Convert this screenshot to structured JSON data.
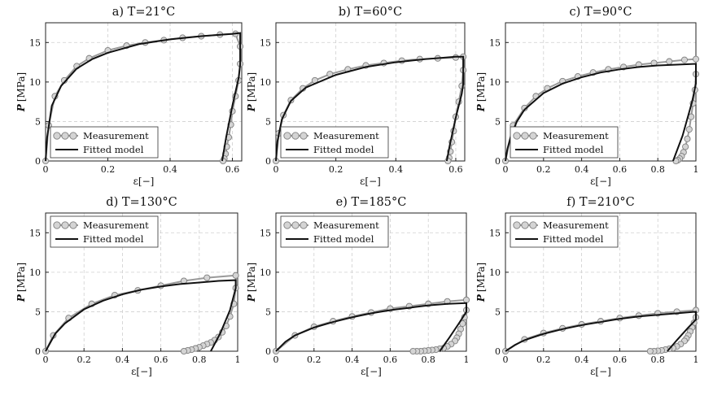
{
  "legend": {
    "measurement": "Measurement",
    "fitted": "Fitted model"
  },
  "colors": {
    "measurement_fill": "#d4d4d4",
    "measurement_edge": "#7f7f7f",
    "measurement_line": "#9a9a9a",
    "fitted_line": "#111111"
  },
  "chart_data": [
    {
      "type": "line",
      "title": "a) T=21°C",
      "xlabel": "ε[−]",
      "ylabel_symbol": "P",
      "ylabel_unit": "[MPa]",
      "xlim": [
        0,
        0.63
      ],
      "ylim": [
        0,
        17.5
      ],
      "xticks": [
        0,
        0.2,
        0.4,
        0.6
      ],
      "xtick_labels": [
        "0",
        "0.2",
        "0.4",
        "0.6"
      ],
      "yticks": [
        0,
        5,
        10,
        15
      ],
      "ytick_labels": [
        "0",
        "5",
        "10",
        "15"
      ],
      "grid": true,
      "legend_position": "bottom-left",
      "series": [
        {
          "name": "Measurement",
          "style": "markers",
          "x": [
            0,
            0.01,
            0.03,
            0.06,
            0.1,
            0.14,
            0.2,
            0.26,
            0.32,
            0.38,
            0.44,
            0.5,
            0.56,
            0.61,
            0.625,
            0.625,
            0.62,
            0.61,
            0.6,
            0.595,
            0.588,
            0.582,
            0.578,
            0.574,
            0.57
          ],
          "y": [
            0,
            4.5,
            8.2,
            10.2,
            12.0,
            13.0,
            14.0,
            14.6,
            15.0,
            15.3,
            15.6,
            15.8,
            16.0,
            16.1,
            14.5,
            12.3,
            10.2,
            8.2,
            6.3,
            4.6,
            3.0,
            1.8,
            0.9,
            0.3,
            0
          ]
        },
        {
          "name": "Fitted model",
          "style": "line",
          "x": [
            0,
            0.005,
            0.02,
            0.05,
            0.1,
            0.15,
            0.2,
            0.3,
            0.4,
            0.5,
            0.6,
            0.625,
            0.625,
            0.62,
            0.6,
            0.58,
            0.567
          ],
          "y": [
            0,
            3.0,
            7.0,
            9.5,
            11.7,
            12.9,
            13.7,
            14.8,
            15.4,
            15.8,
            16.1,
            16.2,
            12.2,
            10.5,
            7.0,
            3.0,
            0
          ]
        }
      ]
    },
    {
      "type": "line",
      "title": "b) T=60°C",
      "xlabel": "ε[−]",
      "ylabel_symbol": "P",
      "ylabel_unit": "[MPa]",
      "xlim": [
        0,
        0.63
      ],
      "ylim": [
        0,
        17.5
      ],
      "xticks": [
        0,
        0.2,
        0.4,
        0.6
      ],
      "xtick_labels": [
        "0",
        "0.2",
        "0.4",
        "0.6"
      ],
      "yticks": [
        0,
        5,
        10,
        15
      ],
      "ytick_labels": [
        "0",
        "5",
        "10",
        "15"
      ],
      "grid": true,
      "legend_position": "bottom-left",
      "series": [
        {
          "name": "Measurement",
          "style": "markers",
          "x": [
            0,
            0.01,
            0.025,
            0.05,
            0.09,
            0.13,
            0.18,
            0.24,
            0.3,
            0.36,
            0.42,
            0.48,
            0.54,
            0.6,
            0.625,
            0.625,
            0.62,
            0.61,
            0.6,
            0.593,
            0.587,
            0.582,
            0.578,
            0.574
          ],
          "y": [
            0,
            3.5,
            5.8,
            7.7,
            9.2,
            10.2,
            11.0,
            11.6,
            12.1,
            12.4,
            12.7,
            12.9,
            13.0,
            13.1,
            13.2,
            11.5,
            9.5,
            7.5,
            5.6,
            3.8,
            2.4,
            1.2,
            0.4,
            0
          ]
        },
        {
          "name": "Fitted model",
          "style": "line",
          "x": [
            0,
            0.005,
            0.02,
            0.05,
            0.1,
            0.2,
            0.3,
            0.4,
            0.5,
            0.6,
            0.625,
            0.625,
            0.62,
            0.6,
            0.58,
            0.57
          ],
          "y": [
            0,
            2.5,
            5.3,
            7.6,
            9.3,
            10.9,
            11.9,
            12.5,
            12.9,
            13.2,
            13.2,
            9.8,
            8.5,
            5.5,
            2.0,
            0
          ]
        }
      ]
    },
    {
      "type": "line",
      "title": "c) T=90°C",
      "xlabel": "ε[−]",
      "ylabel_symbol": "P",
      "ylabel_unit": "[MPa]",
      "xlim": [
        0,
        1.0
      ],
      "ylim": [
        0,
        17.5
      ],
      "xticks": [
        0,
        0.2,
        0.4,
        0.6,
        0.8,
        1
      ],
      "xtick_labels": [
        "0",
        "0.2",
        "0.4",
        "0.6",
        "0.8",
        "1"
      ],
      "yticks": [
        0,
        5,
        10,
        15
      ],
      "ytick_labels": [
        "0",
        "5",
        "10",
        "15"
      ],
      "grid": true,
      "legend_position": "bottom-left",
      "series": [
        {
          "name": "Measurement",
          "style": "markers",
          "x": [
            0,
            0.04,
            0.1,
            0.16,
            0.22,
            0.3,
            0.38,
            0.46,
            0.54,
            0.62,
            0.7,
            0.78,
            0.86,
            0.94,
            1.0,
            1.0,
            0.995,
            0.985,
            0.975,
            0.965,
            0.955,
            0.945,
            0.935,
            0.925,
            0.915,
            0.905,
            0.895
          ],
          "y": [
            0,
            4.5,
            6.7,
            8.2,
            9.2,
            10.1,
            10.7,
            11.2,
            11.6,
            11.9,
            12.2,
            12.4,
            12.6,
            12.8,
            12.9,
            11.0,
            9.0,
            7.3,
            5.6,
            4.0,
            2.8,
            1.8,
            1.1,
            0.6,
            0.3,
            0.1,
            0
          ]
        },
        {
          "name": "Fitted model",
          "style": "line",
          "x": [
            0,
            0.01,
            0.03,
            0.06,
            0.1,
            0.2,
            0.3,
            0.4,
            0.5,
            0.6,
            0.7,
            0.8,
            0.9,
            1.0,
            1.0,
            0.98,
            0.93,
            0.88
          ],
          "y": [
            0,
            1.5,
            3.3,
            5.0,
            6.5,
            8.6,
            9.8,
            10.6,
            11.2,
            11.6,
            11.9,
            12.1,
            12.2,
            12.3,
            9.8,
            7.5,
            3.2,
            0
          ]
        }
      ]
    },
    {
      "type": "line",
      "title": "d) T=130°C",
      "xlabel": "ε[−]",
      "ylabel_symbol": "P",
      "ylabel_unit": "[MPa]",
      "xlim": [
        0,
        1.0
      ],
      "ylim": [
        0,
        17.5
      ],
      "xticks": [
        0,
        0.2,
        0.4,
        0.6,
        0.8,
        1
      ],
      "xtick_labels": [
        "0",
        "0.2",
        "0.4",
        "0.6",
        "0.8",
        "1"
      ],
      "yticks": [
        0,
        5,
        10,
        15
      ],
      "ytick_labels": [
        "0",
        "5",
        "10",
        "15"
      ],
      "grid": true,
      "legend_position": "top-left",
      "series": [
        {
          "name": "Measurement",
          "style": "markers",
          "x": [
            0,
            0.04,
            0.12,
            0.24,
            0.36,
            0.48,
            0.6,
            0.72,
            0.84,
            0.99,
            0.99,
            0.98,
            0.96,
            0.94,
            0.92,
            0.9,
            0.88,
            0.86,
            0.84,
            0.82,
            0.8,
            0.78,
            0.76,
            0.74,
            0.72
          ],
          "y": [
            0,
            2.0,
            4.2,
            6.0,
            7.1,
            7.7,
            8.3,
            8.9,
            9.3,
            9.6,
            8.0,
            6.0,
            4.4,
            3.2,
            2.4,
            1.8,
            1.4,
            1.1,
            0.9,
            0.7,
            0.5,
            0.35,
            0.2,
            0.1,
            0
          ]
        },
        {
          "name": "Fitted model",
          "style": "line",
          "x": [
            0,
            0.05,
            0.1,
            0.2,
            0.3,
            0.4,
            0.5,
            0.6,
            0.7,
            0.8,
            0.9,
            0.99,
            0.99,
            0.96,
            0.91,
            0.86
          ],
          "y": [
            0,
            2.2,
            3.5,
            5.3,
            6.4,
            7.2,
            7.8,
            8.2,
            8.5,
            8.7,
            8.9,
            9.0,
            8.0,
            5.2,
            2.3,
            0
          ]
        }
      ]
    },
    {
      "type": "line",
      "title": "e) T=185°C",
      "xlabel": "ε[−]",
      "ylabel_symbol": "P",
      "ylabel_unit": "[MPa]",
      "xlim": [
        0,
        1.0
      ],
      "ylim": [
        0,
        17.5
      ],
      "xticks": [
        0,
        0.2,
        0.4,
        0.6,
        0.8,
        1
      ],
      "xtick_labels": [
        "0",
        "0.2",
        "0.4",
        "0.6",
        "0.8",
        "1"
      ],
      "yticks": [
        0,
        5,
        10,
        15
      ],
      "ytick_labels": [
        "0",
        "5",
        "10",
        "15"
      ],
      "grid": true,
      "legend_position": "top-left",
      "series": [
        {
          "name": "Measurement",
          "style": "markers",
          "x": [
            0,
            0.1,
            0.2,
            0.3,
            0.4,
            0.5,
            0.6,
            0.7,
            0.8,
            0.9,
            1.0,
            1.0,
            0.99,
            0.98,
            0.97,
            0.96,
            0.95,
            0.94,
            0.92,
            0.9,
            0.88,
            0.86,
            0.84,
            0.82,
            0.8,
            0.78,
            0.76,
            0.74,
            0.72
          ],
          "y": [
            0,
            2.0,
            3.1,
            3.8,
            4.4,
            4.9,
            5.4,
            5.7,
            6.0,
            6.3,
            6.5,
            5.2,
            4.3,
            3.5,
            2.8,
            2.2,
            1.7,
            1.3,
            0.9,
            0.6,
            0.4,
            0.3,
            0.2,
            0.15,
            0.1,
            0.05,
            0,
            0,
            0
          ]
        },
        {
          "name": "Fitted model",
          "style": "line",
          "x": [
            0,
            0.05,
            0.1,
            0.2,
            0.3,
            0.4,
            0.5,
            0.6,
            0.7,
            0.8,
            0.9,
            1.0,
            1.0,
            0.96,
            0.91,
            0.86
          ],
          "y": [
            0,
            1.2,
            2.0,
            3.0,
            3.7,
            4.3,
            4.8,
            5.2,
            5.5,
            5.8,
            6.0,
            6.1,
            5.0,
            3.5,
            1.7,
            0
          ]
        }
      ]
    },
    {
      "type": "line",
      "title": "f) T=210°C",
      "xlabel": "ε[−]",
      "ylabel_symbol": "P",
      "ylabel_unit": "[MPa]",
      "xlim": [
        0,
        1.0
      ],
      "ylim": [
        0,
        17.5
      ],
      "xticks": [
        0,
        0.2,
        0.4,
        0.6,
        0.8,
        1
      ],
      "xtick_labels": [
        "0",
        "0.2",
        "0.4",
        "0.6",
        "0.8",
        "1"
      ],
      "yticks": [
        0,
        5,
        10,
        15
      ],
      "ytick_labels": [
        "0",
        "5",
        "10",
        "15"
      ],
      "grid": true,
      "legend_position": "top-left",
      "series": [
        {
          "name": "Measurement",
          "style": "markers",
          "x": [
            0,
            0.1,
            0.2,
            0.3,
            0.4,
            0.5,
            0.6,
            0.7,
            0.8,
            0.9,
            1.0,
            1.0,
            0.99,
            0.98,
            0.97,
            0.96,
            0.95,
            0.94,
            0.92,
            0.9,
            0.88,
            0.86,
            0.84,
            0.82,
            0.8,
            0.78,
            0.76
          ],
          "y": [
            0,
            1.5,
            2.3,
            2.9,
            3.4,
            3.8,
            4.2,
            4.5,
            4.8,
            5.0,
            5.2,
            4.3,
            3.6,
            3.0,
            2.5,
            2.0,
            1.6,
            1.3,
            0.9,
            0.6,
            0.4,
            0.3,
            0.2,
            0.1,
            0.05,
            0,
            0
          ]
        },
        {
          "name": "Fitted model",
          "style": "line",
          "x": [
            0,
            0.05,
            0.1,
            0.2,
            0.3,
            0.4,
            0.5,
            0.6,
            0.7,
            0.8,
            0.9,
            1.0,
            1.0,
            0.96,
            0.9,
            0.85
          ],
          "y": [
            0,
            0.8,
            1.4,
            2.2,
            2.8,
            3.3,
            3.7,
            4.1,
            4.4,
            4.6,
            4.8,
            5.0,
            4.0,
            3.0,
            1.4,
            0
          ]
        }
      ]
    }
  ]
}
